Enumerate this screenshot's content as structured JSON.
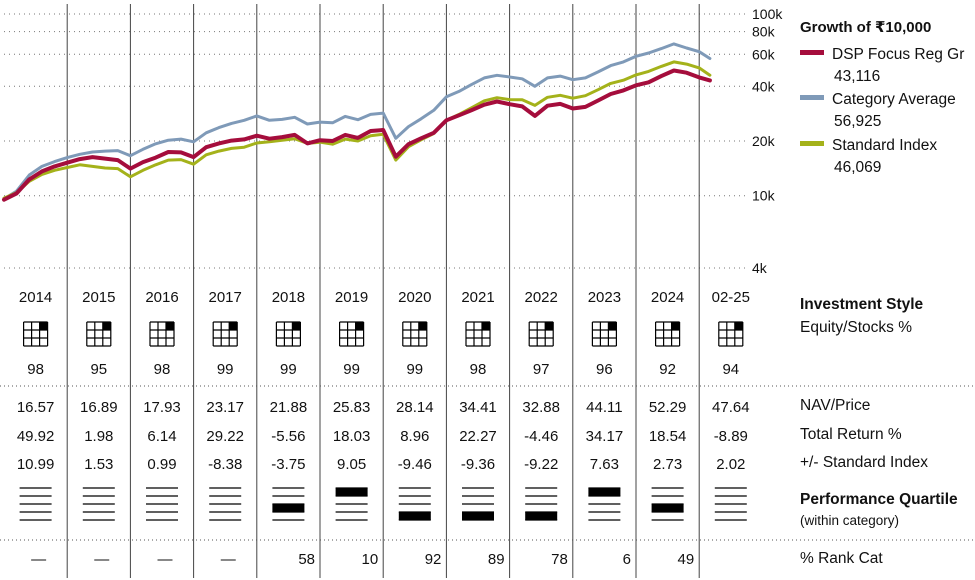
{
  "legend": {
    "title": "Growth of ₹10,000",
    "items": [
      {
        "name": "DSP Focus Reg Gr",
        "value": "43,116",
        "color": "#a50d3c"
      },
      {
        "name": "Category Average",
        "value": "56,925",
        "color": "#7f9ab8"
      },
      {
        "name": "Standard Index",
        "value": "46,069",
        "color": "#a4b21a"
      }
    ]
  },
  "chart_data": {
    "type": "line",
    "y_scale": "log",
    "ylim": [
      4000,
      100000
    ],
    "y_ticks": [
      {
        "value": 100000,
        "label": "100k"
      },
      {
        "value": 80000,
        "label": "80k"
      },
      {
        "value": 60000,
        "label": "60k"
      },
      {
        "value": 40000,
        "label": "40k"
      },
      {
        "value": 20000,
        "label": "20k"
      },
      {
        "value": 10000,
        "label": "10k"
      },
      {
        "value": 4000,
        "label": "4k"
      }
    ],
    "x_start": 2014.0,
    "x_end": 2025.17,
    "series": [
      {
        "name": "DSP Focus Reg Gr",
        "color": "#a50d3c",
        "width": 4,
        "points": [
          [
            2014.0,
            9500
          ],
          [
            2014.2,
            10300
          ],
          [
            2014.4,
            12300
          ],
          [
            2014.6,
            13600
          ],
          [
            2014.8,
            14500
          ],
          [
            2015.0,
            15200
          ],
          [
            2015.2,
            15900
          ],
          [
            2015.4,
            16300
          ],
          [
            2015.6,
            16000
          ],
          [
            2015.8,
            15700
          ],
          [
            2016.0,
            14100
          ],
          [
            2016.2,
            15300
          ],
          [
            2016.4,
            16200
          ],
          [
            2016.6,
            17400
          ],
          [
            2016.8,
            17300
          ],
          [
            2017.0,
            16300
          ],
          [
            2017.2,
            18500
          ],
          [
            2017.4,
            19400
          ],
          [
            2017.6,
            20100
          ],
          [
            2017.8,
            20400
          ],
          [
            2018.0,
            21400
          ],
          [
            2018.2,
            20600
          ],
          [
            2018.4,
            21000
          ],
          [
            2018.6,
            21600
          ],
          [
            2018.8,
            19400
          ],
          [
            2019.0,
            20200
          ],
          [
            2019.2,
            20000
          ],
          [
            2019.4,
            21600
          ],
          [
            2019.6,
            20800
          ],
          [
            2019.8,
            22700
          ],
          [
            2020.0,
            23000
          ],
          [
            2020.2,
            16400
          ],
          [
            2020.4,
            19200
          ],
          [
            2020.6,
            20700
          ],
          [
            2020.8,
            22200
          ],
          [
            2021.0,
            26000
          ],
          [
            2021.2,
            27700
          ],
          [
            2021.4,
            29600
          ],
          [
            2021.6,
            31700
          ],
          [
            2021.8,
            33000
          ],
          [
            2022.0,
            31900
          ],
          [
            2022.2,
            31000
          ],
          [
            2022.4,
            27500
          ],
          [
            2022.6,
            31300
          ],
          [
            2022.8,
            32000
          ],
          [
            2023.0,
            30200
          ],
          [
            2023.2,
            30800
          ],
          [
            2023.4,
            33400
          ],
          [
            2023.6,
            36300
          ],
          [
            2023.8,
            38000
          ],
          [
            2024.0,
            40500
          ],
          [
            2024.2,
            42100
          ],
          [
            2024.4,
            45500
          ],
          [
            2024.6,
            48900
          ],
          [
            2024.8,
            47500
          ],
          [
            2025.0,
            44800
          ],
          [
            2025.17,
            43116
          ]
        ]
      },
      {
        "name": "Category Average",
        "color": "#7f9ab8",
        "width": 3,
        "points": [
          [
            2014.0,
            9600
          ],
          [
            2014.2,
            10600
          ],
          [
            2014.4,
            13000
          ],
          [
            2014.6,
            14500
          ],
          [
            2014.8,
            15400
          ],
          [
            2015.0,
            16200
          ],
          [
            2015.2,
            16900
          ],
          [
            2015.4,
            17400
          ],
          [
            2015.6,
            17600
          ],
          [
            2015.8,
            17700
          ],
          [
            2016.0,
            16600
          ],
          [
            2016.2,
            18000
          ],
          [
            2016.4,
            19300
          ],
          [
            2016.6,
            20200
          ],
          [
            2016.8,
            20500
          ],
          [
            2017.0,
            19800
          ],
          [
            2017.2,
            22200
          ],
          [
            2017.4,
            23700
          ],
          [
            2017.6,
            25000
          ],
          [
            2017.8,
            26000
          ],
          [
            2018.0,
            27500
          ],
          [
            2018.2,
            26000
          ],
          [
            2018.4,
            26300
          ],
          [
            2018.6,
            27000
          ],
          [
            2018.8,
            24800
          ],
          [
            2019.0,
            25400
          ],
          [
            2019.2,
            25200
          ],
          [
            2019.4,
            27300
          ],
          [
            2019.6,
            26200
          ],
          [
            2019.8,
            28000
          ],
          [
            2020.0,
            28500
          ],
          [
            2020.2,
            20700
          ],
          [
            2020.4,
            24000
          ],
          [
            2020.6,
            26500
          ],
          [
            2020.8,
            29500
          ],
          [
            2021.0,
            35000
          ],
          [
            2021.2,
            37500
          ],
          [
            2021.4,
            41000
          ],
          [
            2021.6,
            44500
          ],
          [
            2021.8,
            46000
          ],
          [
            2022.0,
            45000
          ],
          [
            2022.2,
            44000
          ],
          [
            2022.4,
            40000
          ],
          [
            2022.6,
            44500
          ],
          [
            2022.8,
            45500
          ],
          [
            2023.0,
            43500
          ],
          [
            2023.2,
            44500
          ],
          [
            2023.4,
            48000
          ],
          [
            2023.6,
            52000
          ],
          [
            2023.8,
            54500
          ],
          [
            2024.0,
            58500
          ],
          [
            2024.2,
            61000
          ],
          [
            2024.4,
            64500
          ],
          [
            2024.6,
            68500
          ],
          [
            2024.8,
            65000
          ],
          [
            2025.0,
            62000
          ],
          [
            2025.17,
            56925
          ]
        ]
      },
      {
        "name": "Standard Index",
        "color": "#a4b21a",
        "width": 3,
        "points": [
          [
            2014.0,
            9700
          ],
          [
            2014.2,
            10400
          ],
          [
            2014.4,
            12000
          ],
          [
            2014.6,
            13100
          ],
          [
            2014.8,
            13800
          ],
          [
            2015.0,
            14300
          ],
          [
            2015.2,
            14800
          ],
          [
            2015.4,
            14500
          ],
          [
            2015.6,
            14200
          ],
          [
            2015.8,
            14100
          ],
          [
            2016.0,
            12700
          ],
          [
            2016.2,
            13800
          ],
          [
            2016.4,
            14800
          ],
          [
            2016.6,
            15700
          ],
          [
            2016.8,
            15800
          ],
          [
            2017.0,
            14900
          ],
          [
            2017.2,
            16800
          ],
          [
            2017.4,
            17600
          ],
          [
            2017.6,
            18200
          ],
          [
            2017.8,
            18500
          ],
          [
            2018.0,
            19500
          ],
          [
            2018.2,
            19800
          ],
          [
            2018.4,
            20200
          ],
          [
            2018.6,
            20600
          ],
          [
            2018.8,
            19400
          ],
          [
            2019.0,
            19700
          ],
          [
            2019.2,
            19200
          ],
          [
            2019.4,
            20500
          ],
          [
            2019.6,
            20000
          ],
          [
            2019.8,
            21400
          ],
          [
            2020.0,
            21800
          ],
          [
            2020.2,
            15700
          ],
          [
            2020.4,
            18600
          ],
          [
            2020.6,
            20300
          ],
          [
            2020.8,
            22000
          ],
          [
            2021.0,
            26000
          ],
          [
            2021.2,
            28000
          ],
          [
            2021.4,
            30500
          ],
          [
            2021.6,
            33300
          ],
          [
            2021.8,
            34600
          ],
          [
            2022.0,
            33800
          ],
          [
            2022.2,
            33700
          ],
          [
            2022.4,
            31400
          ],
          [
            2022.6,
            34800
          ],
          [
            2022.8,
            35700
          ],
          [
            2023.0,
            34400
          ],
          [
            2023.2,
            35500
          ],
          [
            2023.4,
            38300
          ],
          [
            2023.6,
            41500
          ],
          [
            2023.8,
            43200
          ],
          [
            2024.0,
            46200
          ],
          [
            2024.2,
            48300
          ],
          [
            2024.4,
            51500
          ],
          [
            2024.6,
            54500
          ],
          [
            2024.8,
            53000
          ],
          [
            2025.0,
            50500
          ],
          [
            2025.17,
            46069
          ]
        ]
      }
    ],
    "grid": true
  },
  "years": [
    "2014",
    "2015",
    "2016",
    "2017",
    "2018",
    "2019",
    "2020",
    "2021",
    "2022",
    "2023",
    "2024",
    "02-25"
  ],
  "equity_pct": [
    "98",
    "95",
    "98",
    "99",
    "99",
    "99",
    "99",
    "98",
    "97",
    "96",
    "92",
    "94"
  ],
  "nav_price": [
    "16.57",
    "16.89",
    "17.93",
    "23.17",
    "21.88",
    "25.83",
    "28.14",
    "34.41",
    "32.88",
    "44.11",
    "52.29",
    "47.64"
  ],
  "total_return": [
    "49.92",
    "1.98",
    "6.14",
    "29.22",
    "-5.56",
    "18.03",
    "8.96",
    "22.27",
    "-4.46",
    "34.17",
    "18.54",
    "-8.89"
  ],
  "vs_index": [
    "10.99",
    "1.53",
    "0.99",
    "-8.38",
    "-3.75",
    "9.05",
    "-9.46",
    "-9.36",
    "-9.22",
    "7.63",
    "2.73",
    "2.02"
  ],
  "quartile": [
    0,
    0,
    0,
    0,
    3,
    1,
    4,
    4,
    4,
    1,
    3,
    0
  ],
  "rank_cat": [
    "—",
    "—",
    "—",
    "—",
    "58",
    "10",
    "92",
    "89",
    "78",
    "6",
    "49",
    ""
  ],
  "labels": {
    "investment_style": "Investment Style",
    "equity_stocks": "Equity/Stocks %",
    "nav_price": "NAV/Price",
    "total_return": "Total Return %",
    "vs_index": "+/- Standard Index",
    "perf_quartile": "Performance Quartile",
    "within_category": "(within category)",
    "rank_cat": "% Rank Cat"
  }
}
